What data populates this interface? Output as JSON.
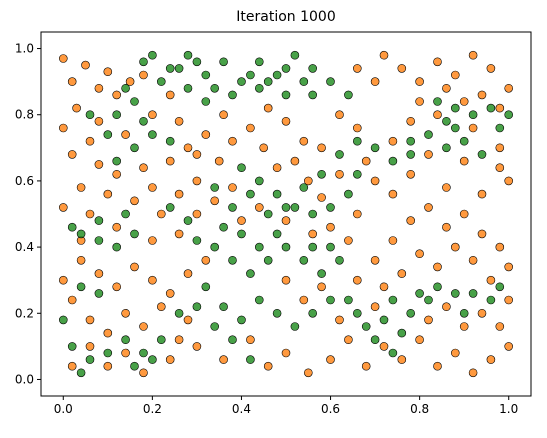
{
  "chart_data": {
    "type": "scatter",
    "title": "Iteration 1000",
    "xlabel": "",
    "ylabel": "",
    "xlim": [
      -0.05,
      1.05
    ],
    "ylim": [
      -0.05,
      1.05
    ],
    "xticks": [
      "0.0",
      "0.2",
      "0.4",
      "0.6",
      "0.8",
      "1.0"
    ],
    "yticks": [
      "0.0",
      "0.2",
      "0.4",
      "0.6",
      "0.8",
      "1.0"
    ],
    "grid": false,
    "legend": "none",
    "marker_edge_color": "#000000",
    "marker_alpha": 0.8,
    "series": [
      {
        "color": "#ff7f0e",
        "points": [
          [
            0.0,
            0.97
          ],
          [
            0.02,
            0.9
          ],
          [
            0.05,
            0.95
          ],
          [
            0.08,
            0.88
          ],
          [
            0.1,
            0.93
          ],
          [
            0.12,
            0.86
          ],
          [
            0.15,
            0.9
          ],
          [
            0.03,
            0.82
          ],
          [
            0.06,
            0.72
          ],
          [
            0.02,
            0.68
          ],
          [
            0.08,
            0.65
          ],
          [
            0.12,
            0.62
          ],
          [
            0.18,
            0.64
          ],
          [
            0.2,
            0.58
          ],
          [
            0.24,
            0.66
          ],
          [
            0.28,
            0.7
          ],
          [
            0.32,
            0.74
          ],
          [
            0.36,
            0.8
          ],
          [
            0.38,
            0.72
          ],
          [
            0.42,
            0.76
          ],
          [
            0.45,
            0.7
          ],
          [
            0.48,
            0.64
          ],
          [
            0.52,
            0.66
          ],
          [
            0.55,
            0.6
          ],
          [
            0.58,
            0.55
          ],
          [
            0.35,
            0.66
          ],
          [
            0.3,
            0.6
          ],
          [
            0.26,
            0.56
          ],
          [
            0.22,
            0.5
          ],
          [
            0.16,
            0.54
          ],
          [
            0.1,
            0.56
          ],
          [
            0.04,
            0.58
          ],
          [
            0.0,
            0.52
          ],
          [
            0.06,
            0.5
          ],
          [
            0.12,
            0.46
          ],
          [
            0.2,
            0.42
          ],
          [
            0.26,
            0.44
          ],
          [
            0.3,
            0.5
          ],
          [
            0.34,
            0.54
          ],
          [
            0.38,
            0.58
          ],
          [
            0.04,
            0.36
          ],
          [
            0.08,
            0.32
          ],
          [
            0.12,
            0.28
          ],
          [
            0.16,
            0.34
          ],
          [
            0.2,
            0.3
          ],
          [
            0.24,
            0.26
          ],
          [
            0.28,
            0.32
          ],
          [
            0.32,
            0.36
          ],
          [
            0.02,
            0.24
          ],
          [
            0.06,
            0.18
          ],
          [
            0.1,
            0.14
          ],
          [
            0.14,
            0.2
          ],
          [
            0.18,
            0.16
          ],
          [
            0.22,
            0.22
          ],
          [
            0.0,
            0.3
          ],
          [
            0.04,
            0.42
          ],
          [
            0.3,
            0.1
          ],
          [
            0.36,
            0.06
          ],
          [
            0.42,
            0.12
          ],
          [
            0.46,
            0.04
          ],
          [
            0.5,
            0.08
          ],
          [
            0.55,
            0.02
          ],
          [
            0.6,
            0.06
          ],
          [
            0.64,
            0.12
          ],
          [
            0.68,
            0.04
          ],
          [
            0.72,
            0.1
          ],
          [
            0.76,
            0.06
          ],
          [
            0.8,
            0.12
          ],
          [
            0.84,
            0.04
          ],
          [
            0.88,
            0.08
          ],
          [
            0.92,
            0.02
          ],
          [
            0.96,
            0.06
          ],
          [
            1.0,
            0.1
          ],
          [
            0.98,
            0.16
          ],
          [
            0.7,
            0.22
          ],
          [
            0.66,
            0.3
          ],
          [
            0.7,
            0.36
          ],
          [
            0.74,
            0.42
          ],
          [
            0.78,
            0.48
          ],
          [
            0.82,
            0.52
          ],
          [
            0.86,
            0.46
          ],
          [
            0.9,
            0.5
          ],
          [
            0.94,
            0.44
          ],
          [
            0.98,
            0.4
          ],
          [
            1.0,
            0.34
          ],
          [
            0.96,
            0.3
          ],
          [
            0.92,
            0.36
          ],
          [
            0.88,
            0.4
          ],
          [
            0.84,
            0.34
          ],
          [
            0.8,
            0.38
          ],
          [
            0.76,
            0.32
          ],
          [
            0.72,
            0.28
          ],
          [
            0.74,
            0.56
          ],
          [
            0.7,
            0.6
          ],
          [
            0.78,
            0.62
          ],
          [
            0.86,
            0.58
          ],
          [
            0.94,
            0.56
          ],
          [
            1.0,
            0.6
          ],
          [
            0.98,
            0.64
          ],
          [
            0.9,
            0.66
          ],
          [
            0.82,
            0.68
          ],
          [
            0.64,
            0.42
          ],
          [
            0.6,
            0.46
          ],
          [
            0.66,
            0.5
          ],
          [
            0.72,
            0.98
          ],
          [
            0.76,
            0.94
          ],
          [
            0.8,
            0.9
          ],
          [
            0.84,
            0.96
          ],
          [
            0.88,
            0.92
          ],
          [
            0.92,
            0.98
          ],
          [
            0.96,
            0.94
          ],
          [
            1.0,
            0.88
          ],
          [
            0.98,
            0.82
          ],
          [
            0.94,
            0.86
          ],
          [
            0.9,
            0.84
          ],
          [
            0.86,
            0.88
          ],
          [
            0.7,
            0.9
          ],
          [
            0.66,
            0.94
          ],
          [
            0.8,
            0.84
          ],
          [
            0.84,
            0.8
          ],
          [
            0.92,
            0.76
          ],
          [
            0.98,
            0.7
          ],
          [
            0.54,
            0.24
          ],
          [
            0.58,
            0.28
          ],
          [
            0.5,
            0.3
          ],
          [
            0.62,
            0.18
          ],
          [
            0.28,
            0.18
          ],
          [
            0.02,
            0.04
          ],
          [
            0.06,
            0.1
          ],
          [
            0.4,
            0.48
          ],
          [
            0.44,
            0.52
          ],
          [
            0.5,
            0.48
          ],
          [
            0.56,
            0.44
          ],
          [
            0.62,
            0.62
          ],
          [
            0.58,
            0.7
          ],
          [
            0.08,
            0.78
          ],
          [
            0.14,
            0.74
          ],
          [
            0.0,
            0.76
          ],
          [
            0.18,
            0.92
          ],
          [
            0.24,
            0.86
          ],
          [
            0.2,
            0.8
          ],
          [
            0.26,
            0.78
          ],
          [
            0.3,
            0.68
          ],
          [
            0.46,
            0.82
          ],
          [
            0.5,
            0.78
          ],
          [
            0.54,
            0.72
          ],
          [
            0.62,
            0.8
          ],
          [
            0.66,
            0.76
          ],
          [
            0.68,
            0.66
          ],
          [
            0.74,
            0.72
          ],
          [
            0.78,
            0.78
          ],
          [
            0.1,
            0.04
          ],
          [
            0.14,
            0.08
          ],
          [
            0.18,
            0.02
          ],
          [
            0.24,
            0.06
          ],
          [
            0.26,
            0.12
          ],
          [
            0.86,
            0.22
          ],
          [
            0.9,
            0.16
          ],
          [
            0.94,
            0.2
          ],
          [
            1.0,
            0.24
          ],
          [
            0.82,
            0.18
          ]
        ]
      },
      {
        "color": "#1a8a1a",
        "points": [
          [
            0.2,
            0.98
          ],
          [
            0.24,
            0.94
          ],
          [
            0.28,
            0.98
          ],
          [
            0.32,
            0.92
          ],
          [
            0.36,
            0.96
          ],
          [
            0.4,
            0.9
          ],
          [
            0.44,
            0.96
          ],
          [
            0.48,
            0.92
          ],
          [
            0.52,
            0.98
          ],
          [
            0.56,
            0.94
          ],
          [
            0.6,
            0.9
          ],
          [
            0.64,
            0.86
          ],
          [
            0.56,
            0.86
          ],
          [
            0.5,
            0.86
          ],
          [
            0.44,
            0.88
          ],
          [
            0.38,
            0.86
          ],
          [
            0.32,
            0.84
          ],
          [
            0.28,
            0.88
          ],
          [
            0.22,
            0.9
          ],
          [
            0.16,
            0.84
          ],
          [
            0.12,
            0.8
          ],
          [
            0.06,
            0.8
          ],
          [
            0.14,
            0.88
          ],
          [
            0.1,
            0.74
          ],
          [
            0.16,
            0.7
          ],
          [
            0.2,
            0.74
          ],
          [
            0.24,
            0.72
          ],
          [
            0.4,
            0.64
          ],
          [
            0.44,
            0.6
          ],
          [
            0.48,
            0.56
          ],
          [
            0.52,
            0.52
          ],
          [
            0.56,
            0.5
          ],
          [
            0.6,
            0.52
          ],
          [
            0.64,
            0.56
          ],
          [
            0.66,
            0.62
          ],
          [
            0.62,
            0.68
          ],
          [
            0.58,
            0.62
          ],
          [
            0.54,
            0.58
          ],
          [
            0.7,
            0.7
          ],
          [
            0.74,
            0.66
          ],
          [
            0.78,
            0.72
          ],
          [
            0.82,
            0.74
          ],
          [
            0.86,
            0.7
          ],
          [
            0.9,
            0.72
          ],
          [
            0.94,
            0.68
          ],
          [
            0.98,
            0.76
          ],
          [
            1.0,
            0.8
          ],
          [
            0.92,
            0.8
          ],
          [
            0.88,
            0.76
          ],
          [
            0.96,
            0.82
          ],
          [
            0.04,
            0.44
          ],
          [
            0.08,
            0.42
          ],
          [
            0.12,
            0.4
          ],
          [
            0.16,
            0.44
          ],
          [
            0.14,
            0.5
          ],
          [
            0.08,
            0.48
          ],
          [
            0.34,
            0.4
          ],
          [
            0.38,
            0.36
          ],
          [
            0.42,
            0.32
          ],
          [
            0.46,
            0.36
          ],
          [
            0.5,
            0.4
          ],
          [
            0.54,
            0.36
          ],
          [
            0.58,
            0.32
          ],
          [
            0.62,
            0.36
          ],
          [
            0.6,
            0.4
          ],
          [
            0.56,
            0.4
          ],
          [
            0.48,
            0.44
          ],
          [
            0.44,
            0.4
          ],
          [
            0.4,
            0.44
          ],
          [
            0.36,
            0.46
          ],
          [
            0.3,
            0.42
          ],
          [
            0.32,
            0.28
          ],
          [
            0.36,
            0.22
          ],
          [
            0.4,
            0.18
          ],
          [
            0.44,
            0.24
          ],
          [
            0.48,
            0.2
          ],
          [
            0.52,
            0.16
          ],
          [
            0.56,
            0.2
          ],
          [
            0.6,
            0.24
          ],
          [
            0.64,
            0.24
          ],
          [
            0.38,
            0.12
          ],
          [
            0.42,
            0.06
          ],
          [
            0.34,
            0.16
          ],
          [
            0.3,
            0.22
          ],
          [
            0.26,
            0.2
          ],
          [
            0.22,
            0.12
          ],
          [
            0.18,
            0.08
          ],
          [
            0.14,
            0.12
          ],
          [
            0.1,
            0.08
          ],
          [
            0.06,
            0.06
          ],
          [
            0.02,
            0.1
          ],
          [
            0.04,
            0.02
          ],
          [
            0.16,
            0.04
          ],
          [
            0.2,
            0.06
          ],
          [
            0.68,
            0.16
          ],
          [
            0.72,
            0.18
          ],
          [
            0.76,
            0.14
          ],
          [
            0.78,
            0.2
          ],
          [
            0.82,
            0.24
          ],
          [
            0.84,
            0.28
          ],
          [
            0.88,
            0.26
          ],
          [
            0.92,
            0.26
          ],
          [
            0.96,
            0.24
          ],
          [
            0.98,
            0.28
          ],
          [
            0.9,
            0.2
          ],
          [
            0.8,
            0.26
          ],
          [
            0.74,
            0.24
          ],
          [
            0.66,
            0.2
          ],
          [
            0.7,
            0.12
          ],
          [
            0.74,
            0.08
          ],
          [
            0.24,
            0.52
          ],
          [
            0.28,
            0.48
          ],
          [
            0.42,
            0.56
          ],
          [
            0.46,
            0.5
          ],
          [
            0.5,
            0.52
          ],
          [
            0.34,
            0.58
          ],
          [
            0.38,
            0.52
          ],
          [
            0.04,
            0.28
          ],
          [
            0.08,
            0.26
          ],
          [
            0.0,
            0.18
          ],
          [
            0.02,
            0.46
          ],
          [
            0.3,
            0.96
          ],
          [
            0.42,
            0.92
          ],
          [
            0.54,
            0.9
          ],
          [
            0.5,
            0.94
          ],
          [
            0.46,
            0.9
          ],
          [
            0.18,
            0.96
          ],
          [
            0.86,
            0.78
          ],
          [
            0.78,
            0.68
          ],
          [
            0.66,
            0.72
          ],
          [
            0.12,
            0.66
          ],
          [
            0.18,
            0.78
          ],
          [
            0.26,
            0.94
          ],
          [
            0.34,
            0.88
          ],
          [
            0.84,
            0.84
          ],
          [
            0.88,
            0.82
          ]
        ]
      }
    ]
  }
}
